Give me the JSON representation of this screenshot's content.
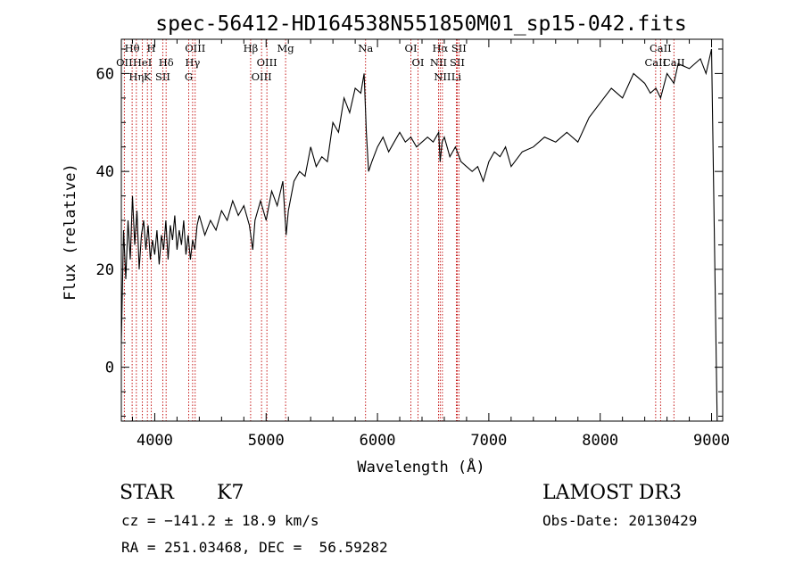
{
  "chart_data": {
    "type": "line",
    "title": "spec-56412-HD164538N551850M01_sp15-042.fits",
    "xlabel": "Wavelength (Å)",
    "ylabel": "Flux (relative)",
    "xlim": [
      3700,
      9100
    ],
    "ylim": [
      -11,
      67
    ],
    "xticks": [
      4000,
      5000,
      6000,
      7000,
      8000,
      9000
    ],
    "yticks": [
      0,
      20,
      40,
      60
    ],
    "series": [
      {
        "name": "flux",
        "x": [
          3700,
          3720,
          3740,
          3760,
          3780,
          3800,
          3820,
          3840,
          3860,
          3880,
          3900,
          3920,
          3940,
          3960,
          3980,
          4000,
          4020,
          4040,
          4060,
          4080,
          4100,
          4120,
          4140,
          4160,
          4180,
          4200,
          4220,
          4240,
          4260,
          4280,
          4300,
          4320,
          4340,
          4360,
          4380,
          4400,
          4450,
          4500,
          4550,
          4600,
          4650,
          4700,
          4750,
          4800,
          4850,
          4880,
          4900,
          4950,
          5000,
          5050,
          5100,
          5150,
          5180,
          5200,
          5250,
          5300,
          5350,
          5400,
          5450,
          5500,
          5550,
          5600,
          5650,
          5700,
          5750,
          5800,
          5850,
          5880,
          5900,
          5920,
          5950,
          6000,
          6050,
          6100,
          6150,
          6200,
          6250,
          6300,
          6350,
          6400,
          6450,
          6500,
          6550,
          6563,
          6580,
          6600,
          6650,
          6700,
          6750,
          6800,
          6850,
          6900,
          6950,
          7000,
          7050,
          7100,
          7150,
          7200,
          7300,
          7400,
          7500,
          7600,
          7700,
          7800,
          7900,
          8000,
          8100,
          8200,
          8300,
          8400,
          8450,
          8500,
          8542,
          8600,
          8662,
          8700,
          8800,
          8900,
          8950,
          9000,
          9050
        ],
        "y": [
          5,
          28,
          18,
          30,
          22,
          35,
          25,
          32,
          20,
          27,
          30,
          24,
          29,
          22,
          26,
          23,
          28,
          21,
          27,
          24,
          30,
          22,
          29,
          26,
          31,
          24,
          28,
          25,
          30,
          23,
          27,
          22,
          26,
          24,
          29,
          31,
          27,
          30,
          28,
          32,
          30,
          34,
          31,
          33,
          29,
          24,
          30,
          34,
          30,
          36,
          33,
          38,
          27,
          32,
          38,
          40,
          39,
          45,
          41,
          43,
          42,
          50,
          48,
          55,
          52,
          57,
          56,
          60,
          48,
          40,
          42,
          45,
          47,
          44,
          46,
          48,
          46,
          47,
          45,
          46,
          47,
          46,
          48,
          42,
          46,
          47,
          43,
          45,
          42,
          41,
          40,
          41,
          38,
          42,
          44,
          43,
          45,
          41,
          44,
          45,
          47,
          46,
          48,
          46,
          51,
          54,
          57,
          55,
          60,
          58,
          56,
          57,
          55,
          60,
          58,
          62,
          61,
          63,
          60,
          65,
          -12
        ]
      }
    ],
    "lines": [
      {
        "name": "Hθ",
        "wave": 3797
      },
      {
        "name": "OII",
        "wave": 3727
      },
      {
        "name": "HeI",
        "wave": 3889
      },
      {
        "name": "Hη",
        "wave": 3835
      },
      {
        "name": "K",
        "wave": 3934
      },
      {
        "name": "H",
        "wave": 3969
      },
      {
        "name": "Hδ",
        "wave": 4102
      },
      {
        "name": "SII",
        "wave": 4072
      },
      {
        "name": "OIII",
        "wave": 4363
      },
      {
        "name": "Hγ",
        "wave": 4340
      },
      {
        "name": "G",
        "wave": 4305
      },
      {
        "name": "Hβ",
        "wave": 4861
      },
      {
        "name": "OIII",
        "wave": 5007
      },
      {
        "name": "OIII",
        "wave": 4959
      },
      {
        "name": "Mg",
        "wave": 5175
      },
      {
        "name": "Na",
        "wave": 5893
      },
      {
        "name": "OI",
        "wave": 6300
      },
      {
        "name": "OI",
        "wave": 6364
      },
      {
        "name": "Hα",
        "wave": 6563
      },
      {
        "name": "NII",
        "wave": 6548
      },
      {
        "name": "NII",
        "wave": 6583
      },
      {
        "name": "SII",
        "wave": 6716
      },
      {
        "name": "Li",
        "wave": 6708
      },
      {
        "name": "SII",
        "wave": 6731
      },
      {
        "name": "CaII",
        "wave": 8542
      },
      {
        "name": "CaII",
        "wave": 8498
      },
      {
        "name": "CaII",
        "wave": 8662
      }
    ]
  },
  "info": {
    "class_label": "STAR",
    "subclass": "K7",
    "survey": "LAMOST DR3",
    "cz": "cz = −141.2 ± 18.9 km/s",
    "obs_date": "Obs-Date: 20130429",
    "coords": "RA = 251.03468, DEC =  56.59282"
  }
}
